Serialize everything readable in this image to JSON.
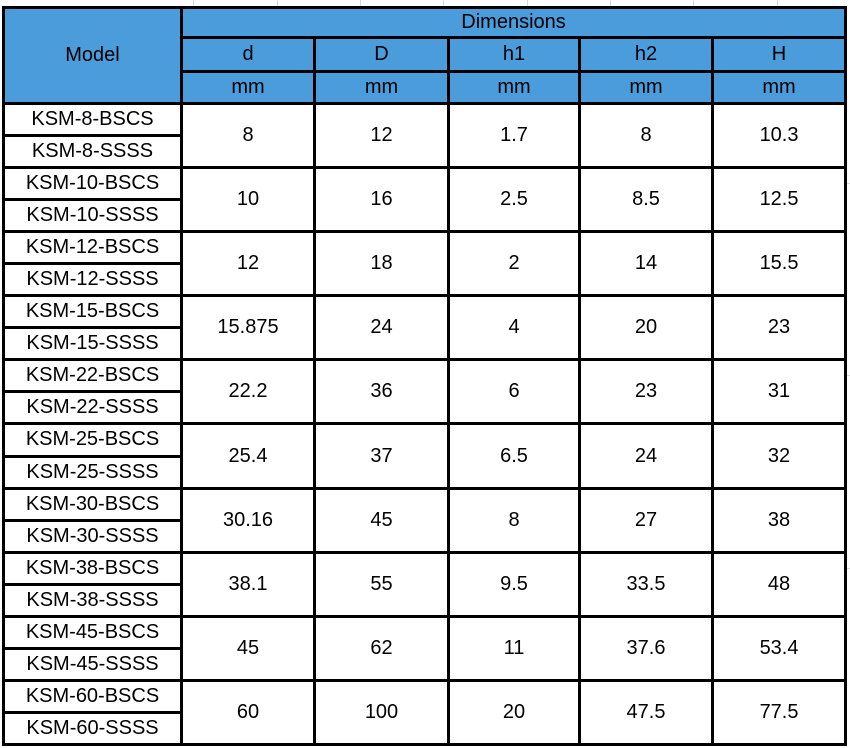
{
  "header": {
    "model": "Model",
    "dimensions": "Dimensions",
    "columns": [
      {
        "label": "d",
        "unit": "mm"
      },
      {
        "label": "D",
        "unit": "mm"
      },
      {
        "label": "h1",
        "unit": "mm"
      },
      {
        "label": "h2",
        "unit": "mm"
      },
      {
        "label": "H",
        "unit": "mm"
      }
    ]
  },
  "rows": [
    {
      "models": [
        "KSM-8-BSCS",
        "KSM-8-SSSS"
      ],
      "values": [
        "8",
        "12",
        "1.7",
        "8",
        "10.3"
      ]
    },
    {
      "models": [
        "KSM-10-BSCS",
        "KSM-10-SSSS"
      ],
      "values": [
        "10",
        "16",
        "2.5",
        "8.5",
        "12.5"
      ]
    },
    {
      "models": [
        "KSM-12-BSCS",
        "KSM-12-SSSS"
      ],
      "values": [
        "12",
        "18",
        "2",
        "14",
        "15.5"
      ]
    },
    {
      "models": [
        "KSM-15-BSCS",
        "KSM-15-SSSS"
      ],
      "values": [
        "15.875",
        "24",
        "4",
        "20",
        "23"
      ]
    },
    {
      "models": [
        "KSM-22-BSCS",
        "KSM-22-SSSS"
      ],
      "values": [
        "22.2",
        "36",
        "6",
        "23",
        "31"
      ]
    },
    {
      "models": [
        "KSM-25-BSCS",
        "KSM-25-SSSS"
      ],
      "values": [
        "25.4",
        "37",
        "6.5",
        "24",
        "32"
      ]
    },
    {
      "models": [
        "KSM-30-BSCS",
        "KSM-30-SSSS"
      ],
      "values": [
        "30.16",
        "45",
        "8",
        "27",
        "38"
      ]
    },
    {
      "models": [
        "KSM-38-BSCS",
        "KSM-38-SSSS"
      ],
      "values": [
        "38.1",
        "55",
        "9.5",
        "33.5",
        "48"
      ]
    },
    {
      "models": [
        "KSM-45-BSCS",
        "KSM-45-SSSS"
      ],
      "values": [
        "45",
        "62",
        "11",
        "37.6",
        "53.4"
      ]
    },
    {
      "models": [
        "KSM-60-BSCS",
        "KSM-60-SSSS"
      ],
      "values": [
        "60",
        "100",
        "20",
        "47.5",
        "77.5"
      ]
    }
  ],
  "colors": {
    "header_blue": "#4A9CDB",
    "border": "#000000"
  }
}
